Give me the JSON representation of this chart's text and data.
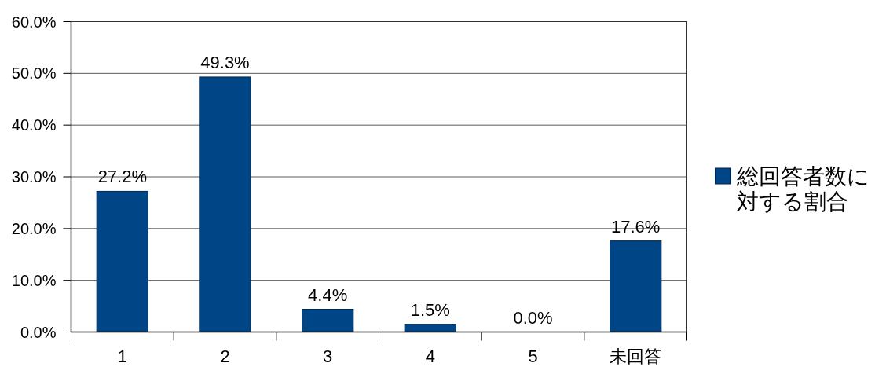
{
  "chart_data": {
    "type": "bar",
    "categories": [
      "1",
      "2",
      "3",
      "4",
      "5",
      "未回答"
    ],
    "series": [
      {
        "name": "総回答者数に対する割合",
        "color": "#004586",
        "values": [
          27.2,
          49.3,
          4.4,
          1.5,
          0.0,
          17.6
        ],
        "value_labels": [
          "27.2%",
          "49.3%",
          "4.4%",
          "1.5%",
          "0.0%",
          "17.6%"
        ]
      }
    ],
    "ylim": [
      0,
      60
    ],
    "yticks": [
      {
        "value": 0,
        "label": "0.0%"
      },
      {
        "value": 10,
        "label": "10.0%"
      },
      {
        "value": 20,
        "label": "20.0%"
      },
      {
        "value": 30,
        "label": "30.0%"
      },
      {
        "value": 40,
        "label": "40.0%"
      },
      {
        "value": 50,
        "label": "50.0%"
      },
      {
        "value": 60,
        "label": "60.0%"
      }
    ],
    "grid": "y",
    "legend": "right"
  }
}
